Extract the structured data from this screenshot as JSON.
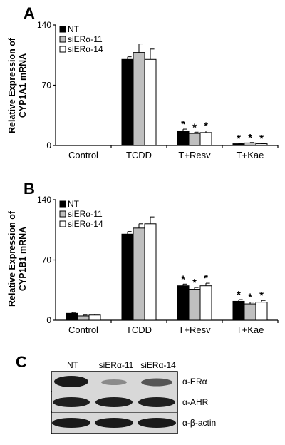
{
  "panels": [
    {
      "letter": "A"
    },
    {
      "letter": "B"
    },
    {
      "letter": "C"
    }
  ],
  "chart_data": [
    {
      "type": "bar",
      "panel": "A",
      "ylabel": "Relative Expression of CYP1A1 mRNA",
      "ylabel_lines": [
        "Relative Expression of",
        "CYP1A1 mRNA"
      ],
      "ylim": [
        0,
        140
      ],
      "yticks": [
        0,
        70,
        140
      ],
      "categories": [
        "Control",
        "TCDD",
        "T+Resv",
        "T+Kae"
      ],
      "legend_position": "top-left",
      "series": [
        {
          "name": "NT",
          "color": "#000000",
          "values": [
            0,
            100,
            17,
            2
          ],
          "errors": [
            0,
            3,
            2,
            0.5
          ]
        },
        {
          "name": "siERα-11",
          "color": "#bfbfbf",
          "values": [
            0,
            108,
            14,
            3
          ],
          "errors": [
            0,
            10,
            1.5,
            0.5
          ]
        },
        {
          "name": "siERα-14",
          "color": "#ffffff",
          "values": [
            0,
            100,
            15,
            2
          ],
          "errors": [
            0,
            12,
            2,
            0.5
          ]
        }
      ],
      "annotations": {
        "symbol": "*",
        "categories": [
          "T+Resv",
          "T+Kae"
        ]
      }
    },
    {
      "type": "bar",
      "panel": "B",
      "ylabel": "Relative Expression of CYP1B1 mRNA",
      "ylabel_lines": [
        "Relative Expression of",
        "CYP1B1 mRNA"
      ],
      "ylim": [
        0,
        140
      ],
      "yticks": [
        0,
        70,
        140
      ],
      "categories": [
        "Control",
        "TCDD",
        "T+Resv",
        "T+Kae"
      ],
      "legend_position": "top-left",
      "series": [
        {
          "name": "NT",
          "color": "#000000",
          "values": [
            8,
            100,
            40,
            22
          ],
          "errors": [
            1,
            3,
            2,
            2
          ]
        },
        {
          "name": "siERα-11",
          "color": "#bfbfbf",
          "values": [
            5,
            107,
            36,
            19
          ],
          "errors": [
            1,
            5,
            2,
            2
          ]
        },
        {
          "name": "siERα-14",
          "color": "#ffffff",
          "values": [
            6,
            112,
            40,
            21
          ],
          "errors": [
            1,
            8,
            3,
            2
          ]
        }
      ],
      "annotations": {
        "symbol": "*",
        "categories": [
          "T+Resv",
          "T+Kae"
        ]
      }
    }
  ],
  "blot": {
    "lanes": [
      "NT",
      "siERα-11",
      "siERα-14"
    ],
    "rows": [
      {
        "label": "α-ERα"
      },
      {
        "label": "α-AHR"
      },
      {
        "label": "α-β-actin"
      }
    ]
  }
}
